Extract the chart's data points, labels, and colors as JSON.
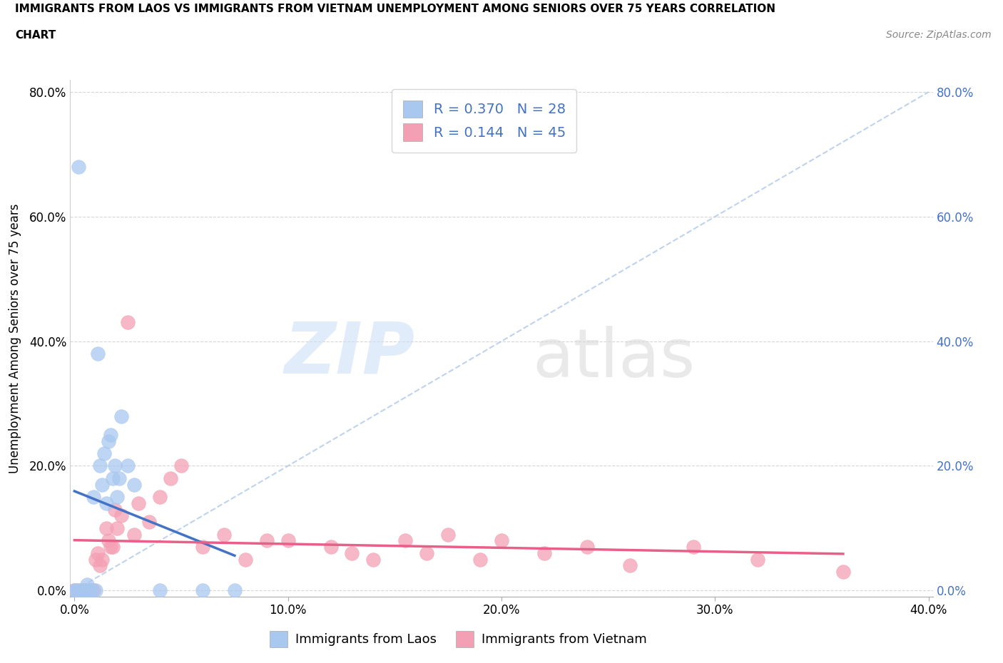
{
  "title_line1": "IMMIGRANTS FROM LAOS VS IMMIGRANTS FROM VIETNAM UNEMPLOYMENT AMONG SENIORS OVER 75 YEARS CORRELATION",
  "title_line2": "CHART",
  "source": "Source: ZipAtlas.com",
  "ylabel": "Unemployment Among Seniors over 75 years",
  "legend_bottom_laos": "Immigrants from Laos",
  "legend_bottom_vietnam": "Immigrants from Vietnam",
  "xlim": [
    -0.002,
    0.402
  ],
  "ylim": [
    -0.01,
    0.82
  ],
  "xtick_labels": [
    "0.0%",
    "10.0%",
    "20.0%",
    "30.0%",
    "40.0%"
  ],
  "xtick_values": [
    0.0,
    0.1,
    0.2,
    0.3,
    0.4
  ],
  "ytick_labels": [
    "0.0%",
    "20.0%",
    "40.0%",
    "60.0%",
    "80.0%"
  ],
  "ytick_values": [
    0.0,
    0.2,
    0.4,
    0.6,
    0.8
  ],
  "laos_R": 0.37,
  "laos_N": 28,
  "vietnam_R": 0.144,
  "vietnam_N": 45,
  "laos_color": "#a8c8f0",
  "vietnam_color": "#f4a0b4",
  "laos_line_color": "#4472c4",
  "vietnam_line_color": "#e8608a",
  "diag_color": "#b0c8e8",
  "laos_x": [
    0.001,
    0.002,
    0.003,
    0.004,
    0.005,
    0.006,
    0.007,
    0.008,
    0.009,
    0.01,
    0.011,
    0.012,
    0.013,
    0.014,
    0.015,
    0.016,
    0.017,
    0.018,
    0.019,
    0.02,
    0.021,
    0.022,
    0.025,
    0.028,
    0.04,
    0.06,
    0.075,
    0.0
  ],
  "laos_y": [
    0.0,
    0.68,
    0.0,
    0.0,
    0.0,
    0.01,
    0.0,
    0.0,
    0.15,
    0.0,
    0.38,
    0.2,
    0.17,
    0.22,
    0.14,
    0.24,
    0.25,
    0.18,
    0.2,
    0.15,
    0.18,
    0.28,
    0.2,
    0.17,
    0.0,
    0.0,
    0.0,
    0.0
  ],
  "vietnam_x": [
    0.0,
    0.002,
    0.004,
    0.005,
    0.006,
    0.007,
    0.008,
    0.009,
    0.01,
    0.011,
    0.012,
    0.013,
    0.015,
    0.016,
    0.017,
    0.018,
    0.019,
    0.02,
    0.022,
    0.025,
    0.028,
    0.03,
    0.035,
    0.04,
    0.045,
    0.05,
    0.06,
    0.07,
    0.08,
    0.09,
    0.1,
    0.12,
    0.13,
    0.14,
    0.155,
    0.165,
    0.175,
    0.19,
    0.2,
    0.22,
    0.24,
    0.26,
    0.29,
    0.32,
    0.36
  ],
  "vietnam_y": [
    0.0,
    0.0,
    0.0,
    0.0,
    0.0,
    0.0,
    0.0,
    0.0,
    0.05,
    0.06,
    0.04,
    0.05,
    0.1,
    0.08,
    0.07,
    0.07,
    0.13,
    0.1,
    0.12,
    0.43,
    0.09,
    0.14,
    0.11,
    0.15,
    0.18,
    0.2,
    0.07,
    0.09,
    0.05,
    0.08,
    0.08,
    0.07,
    0.06,
    0.05,
    0.08,
    0.06,
    0.09,
    0.05,
    0.08,
    0.06,
    0.07,
    0.04,
    0.07,
    0.05,
    0.03
  ]
}
